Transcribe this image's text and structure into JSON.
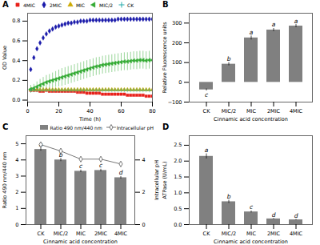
{
  "chart_data": [
    {
      "type": "scatter",
      "title": "A",
      "xlabel": "Time (h)",
      "ylabel": "OD Value",
      "xlim": [
        0,
        80
      ],
      "ylim": [
        -0.02,
        0.88
      ],
      "xticks": [
        0,
        20,
        40,
        60,
        80
      ],
      "yticks": [
        {
          "value": 0.0,
          "label": "0.0"
        },
        0.2,
        0.4,
        0.6,
        0.8
      ],
      "legend": "upper left",
      "series": [
        {
          "name": "4MIC",
          "color": "#e8201a",
          "marker": "square",
          "x": [
            2,
            4,
            6,
            8,
            10,
            12,
            14,
            16,
            18,
            20,
            22,
            24,
            26,
            28,
            30,
            32,
            34,
            36,
            38,
            40,
            42,
            44,
            46,
            48,
            50,
            52,
            54,
            56,
            58,
            60,
            62,
            64,
            66,
            68,
            70,
            72,
            74,
            76,
            78,
            80
          ],
          "values": [
            0.1,
            0.1,
            0.1,
            0.09,
            0.09,
            0.1,
            0.09,
            0.09,
            0.09,
            0.09,
            0.09,
            0.09,
            0.09,
            0.09,
            0.09,
            0.08,
            0.08,
            0.08,
            0.07,
            0.07,
            0.07,
            0.07,
            0.07,
            0.06,
            0.06,
            0.06,
            0.06,
            0.06,
            0.06,
            0.06,
            0.06,
            0.05,
            0.05,
            0.05,
            0.05,
            0.05,
            0.05,
            0.04,
            0.04,
            0.04
          ],
          "errors": [
            0.005,
            0.005,
            0.005,
            0.005,
            0.005,
            0.005,
            0.005,
            0.005,
            0.005,
            0.005,
            0.005,
            0.005,
            0.005,
            0.005,
            0.005,
            0.005,
            0.005,
            0.005,
            0.005,
            0.005,
            0.005,
            0.005,
            0.005,
            0.005,
            0.005,
            0.005,
            0.005,
            0.005,
            0.005,
            0.005,
            0.005,
            0.005,
            0.005,
            0.005,
            0.005,
            0.005,
            0.005,
            0.005,
            0.005,
            0.005
          ]
        },
        {
          "name": "2MIC",
          "color": "#1a1aaa",
          "marker": "diamond",
          "x": [
            2,
            4,
            6,
            8,
            10,
            12,
            14,
            16,
            18,
            20,
            22,
            24,
            26,
            28,
            30,
            32,
            34,
            36,
            38,
            40,
            42,
            44,
            46,
            48,
            50,
            52,
            54,
            56,
            58,
            60,
            62,
            64,
            66,
            68,
            70,
            72,
            74,
            76,
            78,
            80
          ],
          "values": [
            0.31,
            0.43,
            0.52,
            0.58,
            0.63,
            0.67,
            0.7,
            0.72,
            0.74,
            0.75,
            0.76,
            0.77,
            0.78,
            0.78,
            0.79,
            0.79,
            0.8,
            0.8,
            0.8,
            0.81,
            0.81,
            0.81,
            0.81,
            0.81,
            0.81,
            0.81,
            0.81,
            0.81,
            0.82,
            0.82,
            0.82,
            0.82,
            0.82,
            0.82,
            0.82,
            0.82,
            0.82,
            0.82,
            0.82,
            0.82
          ],
          "errors": [
            0.015,
            0.015,
            0.015,
            0.012,
            0.012,
            0.01,
            0.008,
            0.007,
            0.006,
            0.006,
            0.005,
            0.005,
            0.005,
            0.005,
            0.005,
            0.005,
            0.005,
            0.005,
            0.005,
            0.005,
            0.005,
            0.005,
            0.005,
            0.005,
            0.005,
            0.005,
            0.005,
            0.005,
            0.005,
            0.005,
            0.005,
            0.005,
            0.005,
            0.005,
            0.005,
            0.005,
            0.005,
            0.005,
            0.005,
            0.005
          ]
        },
        {
          "name": "MIC",
          "color": "#ccaa00",
          "marker": "triangle",
          "x": [
            2,
            4,
            6,
            8,
            10,
            12,
            14,
            16,
            18,
            20,
            22,
            24,
            26,
            28,
            30,
            32,
            34,
            36,
            38,
            40,
            42,
            44,
            46,
            48,
            50,
            52,
            54,
            56,
            58,
            60,
            62,
            64,
            66,
            68,
            70,
            72,
            74,
            76,
            78,
            80
          ],
          "values": [
            0.105,
            0.105,
            0.105,
            0.105,
            0.105,
            0.105,
            0.105,
            0.105,
            0.105,
            0.105,
            0.105,
            0.105,
            0.105,
            0.105,
            0.105,
            0.105,
            0.105,
            0.105,
            0.105,
            0.105,
            0.105,
            0.105,
            0.105,
            0.105,
            0.105,
            0.105,
            0.105,
            0.105,
            0.105,
            0.105,
            0.105,
            0.105,
            0.105,
            0.105,
            0.105,
            0.105,
            0.105,
            0.105,
            0.105,
            0.105
          ],
          "errors": [
            0.005,
            0.005,
            0.005,
            0.005,
            0.005,
            0.005,
            0.005,
            0.005,
            0.005,
            0.005,
            0.005,
            0.005,
            0.005,
            0.005,
            0.005,
            0.005,
            0.005,
            0.005,
            0.005,
            0.005,
            0.005,
            0.005,
            0.005,
            0.005,
            0.005,
            0.005,
            0.005,
            0.005,
            0.005,
            0.005,
            0.005,
            0.005,
            0.005,
            0.005,
            0.005,
            0.005,
            0.005,
            0.005,
            0.005,
            0.005
          ]
        },
        {
          "name": "MIC/2",
          "color": "#33aa33",
          "marker": "triangle-left",
          "x": [
            2,
            4,
            6,
            8,
            10,
            12,
            14,
            16,
            18,
            20,
            22,
            24,
            26,
            28,
            30,
            32,
            34,
            36,
            38,
            40,
            42,
            44,
            46,
            48,
            50,
            52,
            54,
            56,
            58,
            60,
            62,
            64,
            66,
            68,
            70,
            72,
            74,
            76,
            78,
            80
          ],
          "values": [
            0.11,
            0.12,
            0.135,
            0.15,
            0.165,
            0.18,
            0.19,
            0.2,
            0.21,
            0.22,
            0.23,
            0.24,
            0.25,
            0.26,
            0.27,
            0.28,
            0.29,
            0.3,
            0.31,
            0.32,
            0.33,
            0.34,
            0.345,
            0.355,
            0.36,
            0.365,
            0.37,
            0.375,
            0.38,
            0.385,
            0.39,
            0.39,
            0.395,
            0.4,
            0.4,
            0.405,
            0.405,
            0.4,
            0.405,
            0.405
          ],
          "errors": [
            0.04,
            0.04,
            0.05,
            0.06,
            0.065,
            0.07,
            0.07,
            0.075,
            0.08,
            0.085,
            0.09,
            0.09,
            0.09,
            0.09,
            0.09,
            0.09,
            0.09,
            0.09,
            0.09,
            0.09,
            0.09,
            0.09,
            0.09,
            0.09,
            0.09,
            0.09,
            0.09,
            0.09,
            0.09,
            0.09,
            0.09,
            0.09,
            0.09,
            0.09,
            0.09,
            0.09,
            0.09,
            0.09,
            0.09,
            0.09
          ]
        },
        {
          "name": "CK",
          "color": "#22aaaa",
          "marker": "plus",
          "x": [
            2,
            4,
            6,
            8,
            10,
            12,
            14,
            16,
            18,
            20,
            22,
            24,
            26,
            28,
            30,
            32,
            34,
            36,
            38,
            40,
            42,
            44,
            46,
            48,
            50,
            52,
            54,
            56,
            58,
            60,
            62,
            64,
            66,
            68,
            70,
            72,
            74,
            76,
            78,
            80
          ],
          "values": [
            0.1,
            0.1,
            0.1,
            0.1,
            0.1,
            0.1,
            0.1,
            0.1,
            0.1,
            0.1,
            0.1,
            0.1,
            0.1,
            0.1,
            0.1,
            0.1,
            0.1,
            0.1,
            0.1,
            0.1,
            0.1,
            0.1,
            0.1,
            0.1,
            0.1,
            0.1,
            0.1,
            0.1,
            0.1,
            0.1,
            0.1,
            0.1,
            0.1,
            0.1,
            0.1,
            0.1,
            0.1,
            0.1,
            0.1,
            0.1
          ],
          "errors": [
            0.005,
            0.005,
            0.005,
            0.005,
            0.005,
            0.005,
            0.005,
            0.005,
            0.005,
            0.005,
            0.005,
            0.005,
            0.005,
            0.005,
            0.005,
            0.005,
            0.005,
            0.005,
            0.005,
            0.005,
            0.005,
            0.005,
            0.005,
            0.005,
            0.005,
            0.005,
            0.005,
            0.005,
            0.005,
            0.005,
            0.005,
            0.005,
            0.005,
            0.005,
            0.005,
            0.005,
            0.005,
            0.005,
            0.005,
            0.005
          ]
        }
      ]
    },
    {
      "type": "bar",
      "title": "B",
      "xlabel": "Cinnamic acid concentration",
      "ylabel": "Relative Fluorescence units",
      "categories": [
        "CK",
        "MIC/2",
        "MIC",
        "2MIC",
        "4MIC"
      ],
      "values": [
        -38,
        92,
        225,
        265,
        285
      ],
      "errors": [
        5,
        8,
        10,
        8,
        8
      ],
      "color": "#808080",
      "ylim": [
        -100,
        350
      ],
      "yticks": [
        {
          "value": -100,
          "label": "−100"
        },
        0,
        100,
        200,
        300
      ],
      "annotations": [
        "c",
        "b",
        "a",
        "a",
        "a"
      ]
    },
    {
      "type": "bar",
      "title": "C",
      "xlabel": "Cinnamic acid concentration",
      "ylabel": "Ratio 490 nm/440 nm",
      "y2label": "Intracellular pH",
      "categories": [
        "CK",
        "MIC/2",
        "MIC",
        "2MIC",
        "4MIC"
      ],
      "ylim": [
        0,
        5.5
      ],
      "yticks": [
        0,
        1,
        2,
        3,
        4,
        5
      ],
      "y2lim": [
        0,
        5.5
      ],
      "y2ticks": [
        0,
        2,
        4
      ],
      "legend": "upper right",
      "annotations": [
        "a",
        "b",
        "c",
        "c",
        "d"
      ],
      "series": [
        {
          "name": "Ratio 490 nm/440 nm",
          "type": "bar",
          "color": "#808080",
          "values": [
            4.65,
            4.0,
            3.3,
            3.35,
            2.9
          ],
          "errors": [
            0.1,
            0.1,
            0.08,
            0.08,
            0.08
          ]
        },
        {
          "name": "Intracellular pH",
          "type": "line",
          "axis": "y2",
          "color": "#555555",
          "marker": "diamond",
          "values": [
            4.95,
            4.55,
            4.05,
            4.05,
            3.75
          ],
          "errors": [
            0.05,
            0.05,
            0.05,
            0.05,
            0.05
          ]
        }
      ]
    },
    {
      "type": "bar",
      "title": "D",
      "xlabel": "Cinnamic acid concentration",
      "ylabel": "ATPase (U/mL)",
      "categories": [
        "CK",
        "MIC/2",
        "MIC",
        "2MIC",
        "4MIC"
      ],
      "values": [
        2.15,
        0.72,
        0.4,
        0.18,
        0.15
      ],
      "errors": [
        0.08,
        0.05,
        0.03,
        0.015,
        0.015
      ],
      "color": "#808080",
      "ylim": [
        0,
        2.8
      ],
      "yticks": [
        {
          "value": 0.0,
          "label": "0.0"
        },
        0.5,
        {
          "value": 1.0,
          "label": "1.0"
        },
        1.5,
        {
          "value": 2.0,
          "label": "2.0"
        },
        2.5
      ],
      "annotations": [
        "a",
        "b",
        "c",
        "d",
        "d"
      ]
    }
  ]
}
